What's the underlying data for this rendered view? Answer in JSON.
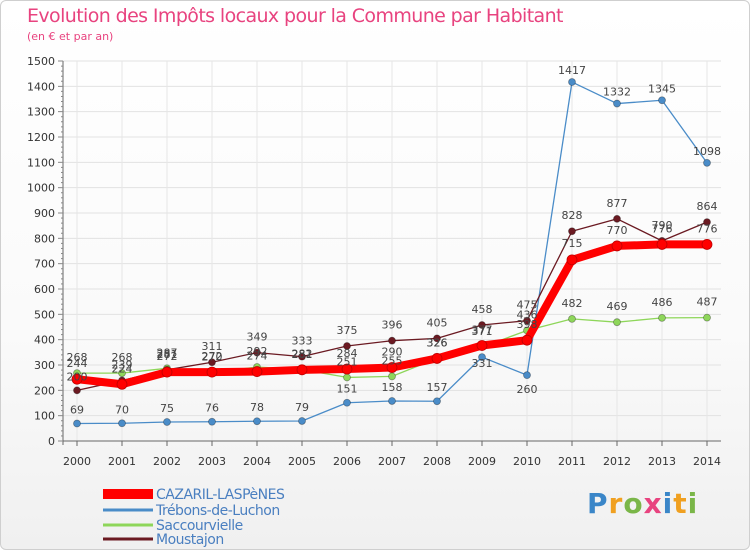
{
  "chart_data": {
    "type": "line",
    "title": "Evolution des Impôts locaux pour la Commune par Habitant",
    "subtitle": "(en € et par an)",
    "xlabel": "",
    "ylabel": "",
    "ylim": [
      0,
      1500
    ],
    "yticks": [
      0,
      100,
      200,
      300,
      400,
      500,
      600,
      700,
      800,
      900,
      1000,
      1100,
      1200,
      1300,
      1400,
      1500
    ],
    "categories": [
      "2000",
      "2001",
      "2002",
      "2003",
      "2004",
      "2005",
      "2006",
      "2007",
      "2008",
      "2009",
      "2010",
      "2011",
      "2012",
      "2013",
      "2014"
    ],
    "series": [
      {
        "name": "Trébons-de-Luchon",
        "color": "#4a8cc8",
        "values": [
          69,
          70,
          75,
          76,
          78,
          79,
          151,
          158,
          157,
          331,
          260,
          1417,
          1332,
          1345,
          1098
        ]
      },
      {
        "name": "Saccourvielle",
        "color": "#8ed65a",
        "values": [
          268,
          268,
          287,
          270,
          292,
          282,
          251,
          255,
          326,
          371,
          436,
          482,
          469,
          486,
          487
        ]
      },
      {
        "name": "Moustajon",
        "color": "#6b1a22",
        "values": [
          200,
          239,
          281,
          311,
          349,
          333,
          375,
          396,
          405,
          458,
          475,
          828,
          877,
          790,
          864
        ]
      },
      {
        "name": "CAZARIL-LASPèNES",
        "color": "#ff0000",
        "values": [
          244,
          224,
          272,
          272,
          274,
          281,
          284,
          290,
          326,
          377,
          398,
          715,
          770,
          776,
          776
        ]
      }
    ],
    "legend": [
      "CAZARIL-LASPèNES",
      "Trébons-de-Luchon",
      "Saccourvielle",
      "Moustajon"
    ]
  },
  "brand": [
    "P",
    "r",
    "o",
    "x",
    "i",
    "t",
    "i"
  ]
}
